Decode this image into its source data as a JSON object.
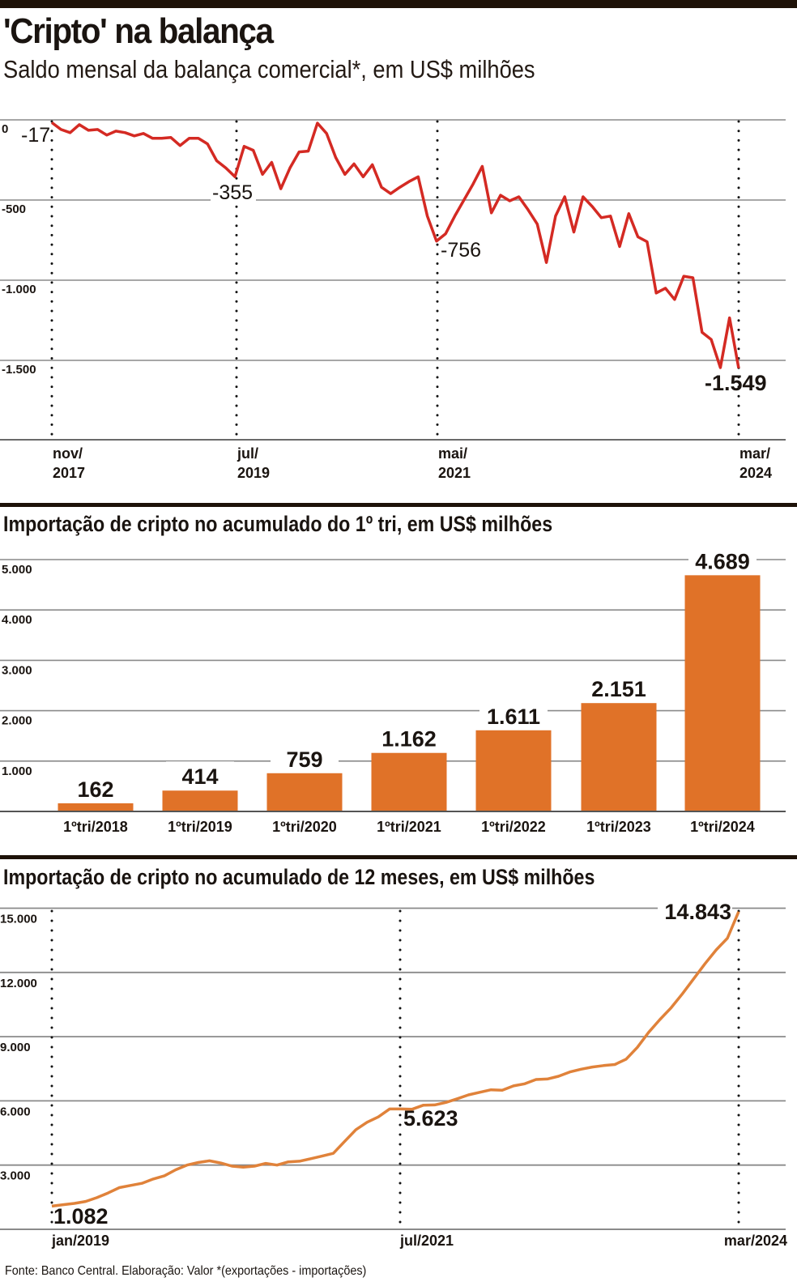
{
  "header": {
    "title": "'Cripto' na balança",
    "subtitle": "Saldo mensal da balança comercial*, em US$ milhões"
  },
  "footer": {
    "source": "Fonte: Banco Central. Elaboração: Valor *(exportações - importações)"
  },
  "colors": {
    "line_red": "#d42a23",
    "bar_orange": "#e07228",
    "line_orange": "#e0823a",
    "grid": "#8a8a8a",
    "rule": "#1e1208"
  },
  "chart_data": [
    {
      "type": "line",
      "title": "Saldo mensal da balança comercial*, em US$ milhões",
      "xlabel": "",
      "ylabel": "US$ milhões",
      "ylim": [
        -1900,
        0
      ],
      "grid": true,
      "yticks": [
        "0",
        "-500",
        "-1.000",
        "-1.500"
      ],
      "xticks": [
        {
          "line1": "nov/",
          "line2": "2017"
        },
        {
          "line1": "jul/",
          "line2": "2019"
        },
        {
          "line1": "mai/",
          "line2": "2021"
        },
        {
          "line1": "mar/",
          "line2": "2024"
        }
      ],
      "annotations": [
        {
          "label": "-17",
          "value": -17,
          "at": "nov/2017"
        },
        {
          "label": "-355",
          "value": -355,
          "at": "jul/2019"
        },
        {
          "label": "-756",
          "value": -756,
          "at": "mai/2021"
        },
        {
          "label": "-1.549",
          "value": -1549,
          "at": "mar/2024"
        }
      ],
      "start": "nov/2017",
      "end": "mar/2024",
      "series": [
        {
          "name": "Saldo mensal",
          "values": [
            -17,
            -60,
            -80,
            -30,
            -65,
            -60,
            -95,
            -70,
            -80,
            -100,
            -85,
            -115,
            -115,
            -110,
            -160,
            -115,
            -115,
            -150,
            -255,
            -300,
            -355,
            -165,
            -190,
            -340,
            -265,
            -430,
            -300,
            -200,
            -195,
            -20,
            -85,
            -235,
            -340,
            -275,
            -355,
            -280,
            -420,
            -460,
            -420,
            -385,
            -355,
            -600,
            -756,
            -710,
            -600,
            -500,
            -400,
            -290,
            -580,
            -470,
            -505,
            -480,
            -560,
            -650,
            -890,
            -600,
            -480,
            -700,
            -480,
            -540,
            -610,
            -600,
            -790,
            -585,
            -730,
            -760,
            -1080,
            -1050,
            -1120,
            -975,
            -985,
            -1325,
            -1370,
            -1545,
            -1235,
            -1549
          ]
        }
      ]
    },
    {
      "type": "bar",
      "title": "Importação de cripto no acumulado do 1º tri, em US$ milhões",
      "xlabel": "",
      "ylabel": "US$ milhões",
      "ylim": [
        0,
        5000
      ],
      "grid": true,
      "yticks": [
        "5.000",
        "4.000",
        "3.000",
        "2.000",
        "1.000"
      ],
      "categories": [
        "1ºtri/2018",
        "1ºtri/2019",
        "1ºtri/2020",
        "1ºtri/2021",
        "1ºtri/2022",
        "1ºtri/2023",
        "1ºtri/2024"
      ],
      "values": [
        162,
        414,
        759,
        1162,
        1611,
        2151,
        4689
      ],
      "labels": [
        "162",
        "414",
        "759",
        "1.162",
        "1.611",
        "2.151",
        "4.689"
      ]
    },
    {
      "type": "line",
      "title": "Importação de cripto no acumulado de 12 meses, em US$ milhões",
      "xlabel": "",
      "ylabel": "US$ milhões",
      "ylim": [
        0,
        15500
      ],
      "grid": true,
      "yticks": [
        "15.000",
        "12.000",
        "9.000",
        "6.000",
        "3.000"
      ],
      "xticks": [
        "jan/2019",
        "jul/2021",
        "mar/2024"
      ],
      "annotations": [
        {
          "label": "1.082",
          "value": 1082,
          "at": "jan/2019"
        },
        {
          "label": "5.623",
          "value": 5623,
          "at": "jul/2021"
        },
        {
          "label": "14.843",
          "value": 14843,
          "at": "mar/2024"
        }
      ],
      "start": "jan/2019",
      "end": "mar/2024",
      "series": [
        {
          "name": "Acumulado 12 meses",
          "values": [
            1082,
            1150,
            1210,
            1300,
            1480,
            1700,
            1950,
            2050,
            2150,
            2350,
            2500,
            2780,
            3000,
            3120,
            3200,
            3100,
            2950,
            2900,
            2950,
            3080,
            3000,
            3150,
            3180,
            3300,
            3420,
            3550,
            4100,
            4650,
            5000,
            5250,
            5623,
            5620,
            5610,
            5800,
            5810,
            5930,
            6100,
            6280,
            6400,
            6520,
            6500,
            6700,
            6800,
            7000,
            7020,
            7150,
            7350,
            7480,
            7580,
            7650,
            7700,
            7950,
            8500,
            9200,
            9800,
            10350,
            11000,
            11700,
            12400,
            13050,
            13600,
            14843
          ]
        }
      ]
    }
  ]
}
